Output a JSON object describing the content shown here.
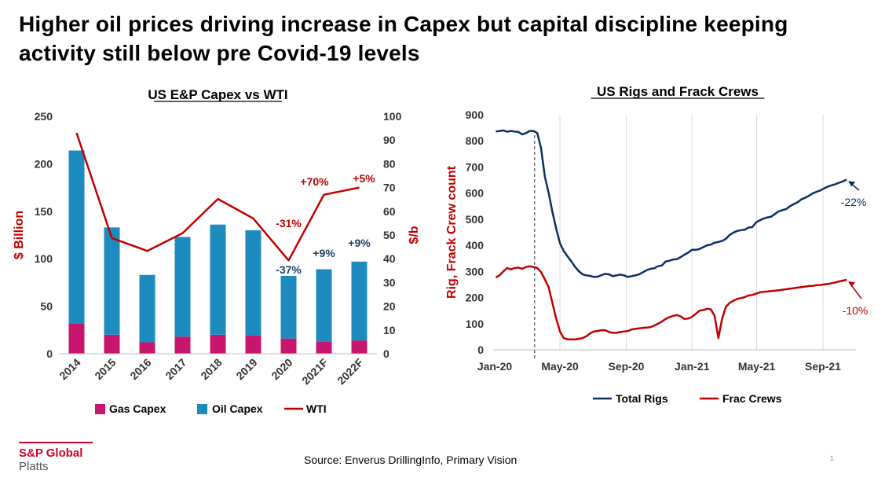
{
  "title": "Higher oil prices driving increase in Capex but capital discipline keeping activity still below pre Covid-19 levels",
  "footer": {
    "brand": "S&P Global",
    "brand_sub": "Platts",
    "source": "Source: Enverus DrillingInfo, Primary Vision",
    "page_number": "1"
  },
  "colors": {
    "gas_capex": "#c8166e",
    "oil_capex": "#1e8bbf",
    "wti": "#c00000",
    "total_rigs": "#0b2f5e",
    "frac_crews": "#c00000",
    "red_label": "#c00000",
    "blue_label": "#1f3f66"
  },
  "chart_data": [
    {
      "type": "bar",
      "title": "US E&P Capex vs WTI",
      "stacked": true,
      "categories": [
        "2014",
        "2015",
        "2016",
        "2017",
        "2018",
        "2019",
        "2020",
        "2021F",
        "2022F"
      ],
      "series": [
        {
          "name": "Gas Capex",
          "axis": "left",
          "values": [
            32,
            20,
            12,
            18,
            20,
            19,
            16,
            13,
            14
          ]
        },
        {
          "name": "Oil Capex",
          "axis": "left",
          "values": [
            182,
            113,
            71,
            105,
            116,
            111,
            66,
            76,
            83
          ]
        },
        {
          "name": "WTI",
          "type": "line",
          "axis": "right",
          "values": [
            93,
            48.7,
            43.3,
            50.8,
            65.2,
            57,
            39.3,
            67,
            70
          ]
        }
      ],
      "ylabel": "$ Billion",
      "ylim": [
        0,
        250
      ],
      "yticks": [
        "0",
        "50",
        "100",
        "150",
        "200",
        "250"
      ],
      "y2label": "$/b",
      "y2lim": [
        0,
        100
      ],
      "y2ticks": [
        "0",
        "10",
        "20",
        "30",
        "40",
        "50",
        "60",
        "70",
        "80",
        "90",
        "100"
      ],
      "legend_position": "bottom",
      "annotations": {
        "wti_2020": "-31%",
        "wti_2021F": "+70%",
        "wti_2022F": "+5%",
        "capex_2020": "-37%",
        "capex_2021F": "+9%",
        "capex_2022F": "+9%"
      }
    },
    {
      "type": "line",
      "title": "US Rigs and Frack Crews",
      "xlabel": "",
      "ylabel": "Rig, Frack Crew count",
      "ylim": [
        0,
        900
      ],
      "yticks": [
        "0",
        "100",
        "200",
        "300",
        "400",
        "500",
        "600",
        "700",
        "800",
        "900"
      ],
      "x_tick_labels": [
        "Jan-20",
        "May-20",
        "Sep-20",
        "Jan-21",
        "May-21",
        "Sep-21"
      ],
      "x": [
        "2020-01-03",
        "2020-01-10",
        "2020-01-17",
        "2020-01-24",
        "2020-01-31",
        "2020-02-07",
        "2020-02-14",
        "2020-02-21",
        "2020-02-28",
        "2020-03-06",
        "2020-03-13",
        "2020-03-20",
        "2020-03-27",
        "2020-04-03",
        "2020-04-10",
        "2020-04-17",
        "2020-04-24",
        "2020-05-01",
        "2020-05-08",
        "2020-05-15",
        "2020-05-22",
        "2020-05-29",
        "2020-06-05",
        "2020-06-12",
        "2020-06-19",
        "2020-06-26",
        "2020-07-03",
        "2020-07-10",
        "2020-07-17",
        "2020-07-24",
        "2020-07-31",
        "2020-08-07",
        "2020-08-14",
        "2020-08-21",
        "2020-08-28",
        "2020-09-04",
        "2020-09-11",
        "2020-09-18",
        "2020-09-25",
        "2020-10-02",
        "2020-10-09",
        "2020-10-16",
        "2020-10-23",
        "2020-10-30",
        "2020-11-06",
        "2020-11-13",
        "2020-11-20",
        "2020-11-27",
        "2020-12-04",
        "2020-12-11",
        "2020-12-18",
        "2020-12-25",
        "2021-01-01",
        "2021-01-08",
        "2021-01-15",
        "2021-01-22",
        "2021-01-29",
        "2021-02-05",
        "2021-02-12",
        "2021-02-19",
        "2021-02-26",
        "2021-03-05",
        "2021-03-12",
        "2021-03-19",
        "2021-03-26",
        "2021-04-02",
        "2021-04-09",
        "2021-04-16",
        "2021-04-23",
        "2021-04-30",
        "2021-05-07",
        "2021-05-14",
        "2021-05-21",
        "2021-05-28",
        "2021-06-04",
        "2021-06-11",
        "2021-06-18",
        "2021-06-25",
        "2021-07-02",
        "2021-07-09",
        "2021-07-16",
        "2021-07-23",
        "2021-07-30",
        "2021-08-06",
        "2021-08-13",
        "2021-08-20",
        "2021-08-27",
        "2021-09-03",
        "2021-09-10",
        "2021-09-17",
        "2021-09-24",
        "2021-10-01",
        "2021-10-08",
        "2021-10-15"
      ],
      "series": [
        {
          "name": "Total Rigs",
          "values": [
            836,
            838,
            840,
            835,
            838,
            836,
            834,
            825,
            830,
            838,
            838,
            830,
            772,
            664,
            602,
            529,
            465,
            408,
            378,
            358,
            339,
            318,
            301,
            289,
            285,
            283,
            279,
            280,
            286,
            291,
            289,
            282,
            285,
            288,
            285,
            279,
            282,
            285,
            289,
            297,
            305,
            310,
            312,
            320,
            323,
            338,
            341,
            346,
            347,
            355,
            364,
            372,
            383,
            383,
            386,
            393,
            400,
            403,
            410,
            413,
            417,
            425,
            440,
            449,
            455,
            458,
            460,
            468,
            470,
            488,
            496,
            503,
            507,
            510,
            520,
            530,
            535,
            539,
            550,
            558,
            565,
            576,
            582,
            590,
            599,
            605,
            610,
            618,
            625,
            630,
            634,
            640,
            645,
            652
          ]
        },
        {
          "name": "Frac Crews",
          "values": [
            277,
            285,
            300,
            313,
            308,
            313,
            315,
            310,
            317,
            320,
            317,
            313,
            298,
            270,
            240,
            180,
            120,
            70,
            45,
            40,
            40,
            40,
            42,
            45,
            52,
            63,
            70,
            72,
            75,
            75,
            68,
            65,
            65,
            68,
            70,
            72,
            78,
            80,
            82,
            84,
            85,
            87,
            93,
            100,
            108,
            118,
            125,
            130,
            133,
            128,
            118,
            120,
            126,
            138,
            150,
            152,
            157,
            155,
            130,
            45,
            120,
            165,
            180,
            188,
            195,
            198,
            202,
            208,
            210,
            215,
            220,
            222,
            223,
            225,
            226,
            228,
            230,
            232,
            234,
            236,
            238,
            240,
            242,
            244,
            245,
            247,
            248,
            250,
            252,
            255,
            258,
            262,
            265,
            268
          ]
        }
      ],
      "annotations": {
        "total_rigs_change": "-22%",
        "frac_crews_change": "-10%"
      },
      "legend_position": "bottom"
    }
  ]
}
